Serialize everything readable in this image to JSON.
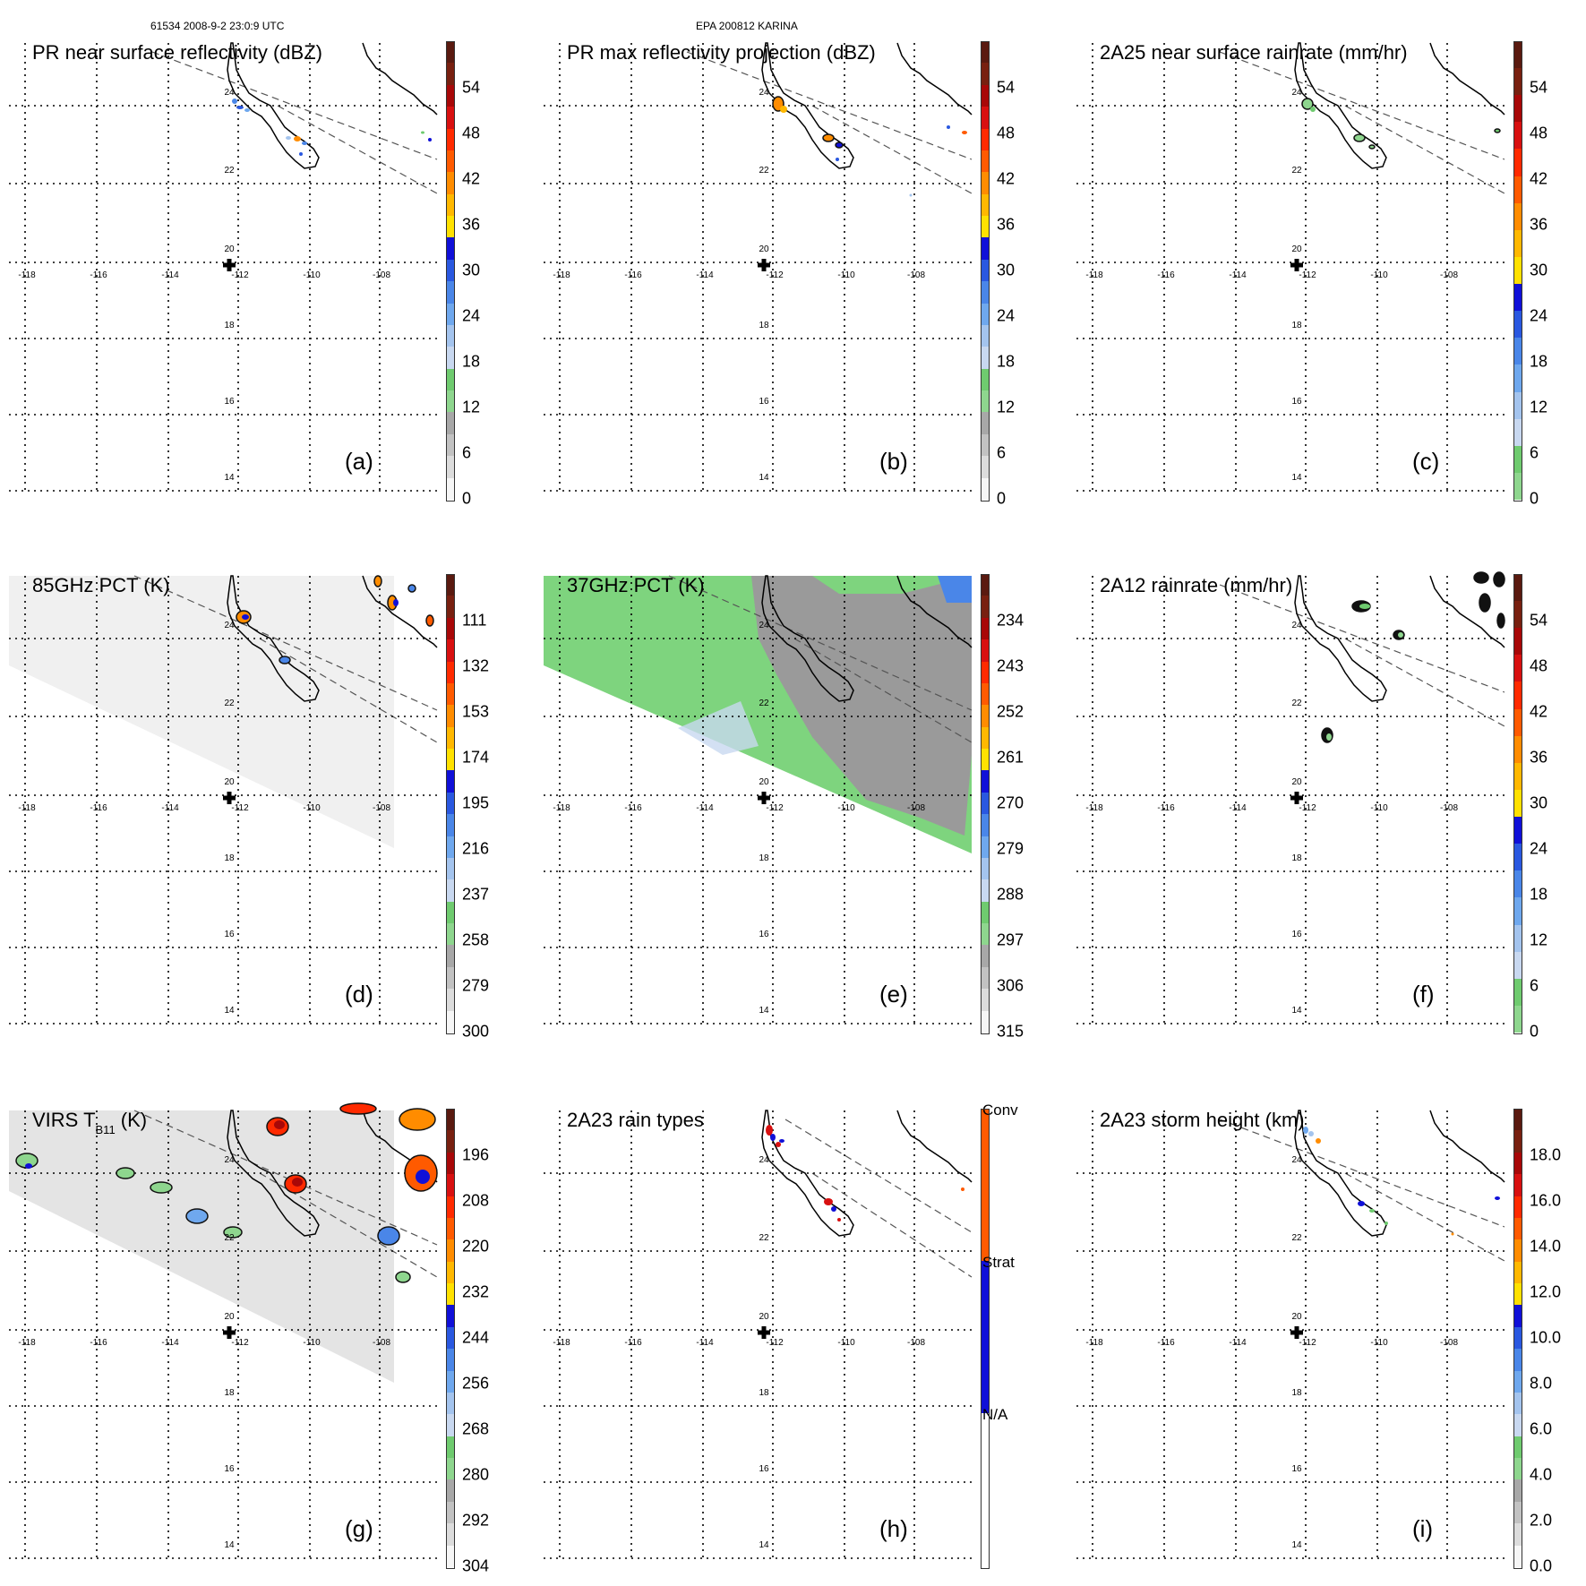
{
  "header": {
    "left_label": "61534 2008-9-2 23:0:9 UTC",
    "center_label": "EPA 200812 KARINA"
  },
  "lon_labels": [
    "-118",
    "-116",
    "-114",
    "-112",
    "-110",
    "-108"
  ],
  "lat_labels": [
    "24",
    "22",
    "20",
    "18",
    "16",
    "14"
  ],
  "panels": [
    {
      "id": "a",
      "title": "PR near surface reflectivity (dBZ)",
      "title_sub": "",
      "title_after": "",
      "letter": "(a)",
      "background": "none",
      "colorbar": {
        "scheme": "standard",
        "labels": [
          "54",
          "48",
          "42",
          "36",
          "30",
          "24",
          "18",
          "12",
          "6",
          "0"
        ]
      }
    },
    {
      "id": "b",
      "title": "PR max reflectivity projection (dBZ)",
      "title_sub": "",
      "title_after": "",
      "letter": "(b)",
      "background": "none",
      "colorbar": {
        "scheme": "standard",
        "labels": [
          "54",
          "48",
          "42",
          "36",
          "30",
          "24",
          "18",
          "12",
          "6",
          "0"
        ]
      }
    },
    {
      "id": "c",
      "title": "2A25 near surface rainrate (mm/hr)",
      "title_sub": "",
      "title_after": "",
      "letter": "(c)",
      "background": "none",
      "colorbar": {
        "scheme": "rain",
        "labels": [
          "54",
          "48",
          "42",
          "36",
          "30",
          "24",
          "18",
          "12",
          "6",
          "0"
        ]
      }
    },
    {
      "id": "d",
      "title": "85GHz PCT (K)",
      "title_sub": "",
      "title_after": "",
      "letter": "(d)",
      "background": "light-swath",
      "colorbar": {
        "scheme": "standard",
        "labels": [
          "111",
          "132",
          "153",
          "174",
          "195",
          "216",
          "237",
          "258",
          "279",
          "300"
        ]
      }
    },
    {
      "id": "e",
      "title": "37GHz PCT (K)",
      "title_sub": "",
      "title_after": "",
      "letter": "(e)",
      "background": "green-swath",
      "colorbar": {
        "scheme": "standard",
        "labels": [
          "234",
          "243",
          "252",
          "261",
          "270",
          "279",
          "288",
          "297",
          "306",
          "315"
        ]
      }
    },
    {
      "id": "f",
      "title": "2A12 rainrate (mm/hr)",
      "title_sub": "",
      "title_after": "",
      "letter": "(f)",
      "background": "none",
      "colorbar": {
        "scheme": "rain",
        "labels": [
          "54",
          "48",
          "42",
          "36",
          "30",
          "24",
          "18",
          "12",
          "6",
          "0"
        ]
      }
    },
    {
      "id": "g",
      "title": "VIRS T",
      "title_sub": "B11",
      "title_after": " (K)",
      "letter": "(g)",
      "background": "virs-swath",
      "colorbar": {
        "scheme": "standard",
        "labels": [
          "196",
          "208",
          "220",
          "232",
          "244",
          "256",
          "268",
          "280",
          "292",
          "304"
        ]
      }
    },
    {
      "id": "h",
      "title": "2A23 rain types",
      "title_sub": "",
      "title_after": "",
      "letter": "(h)",
      "background": "none",
      "colorbar": {
        "scheme": "raintype",
        "labels": [
          "Conv",
          "Strat",
          "N/A"
        ]
      }
    },
    {
      "id": "i",
      "title": "2A23 storm height (km)",
      "title_sub": "",
      "title_after": "",
      "letter": "(i)",
      "background": "none",
      "colorbar": {
        "scheme": "standard",
        "labels": [
          "18.0",
          "16.0",
          "14.0",
          "12.0",
          "10.0",
          "8.0",
          "6.0",
          "4.0",
          "2.0",
          "0.0"
        ]
      }
    }
  ],
  "colors": {
    "grid": "#000000",
    "coast": "#000000",
    "swath_edge": "#555555",
    "green": "#7ed47e",
    "swath_light": "#f0f0f0",
    "swath_gray": "#9a9a9a"
  }
}
